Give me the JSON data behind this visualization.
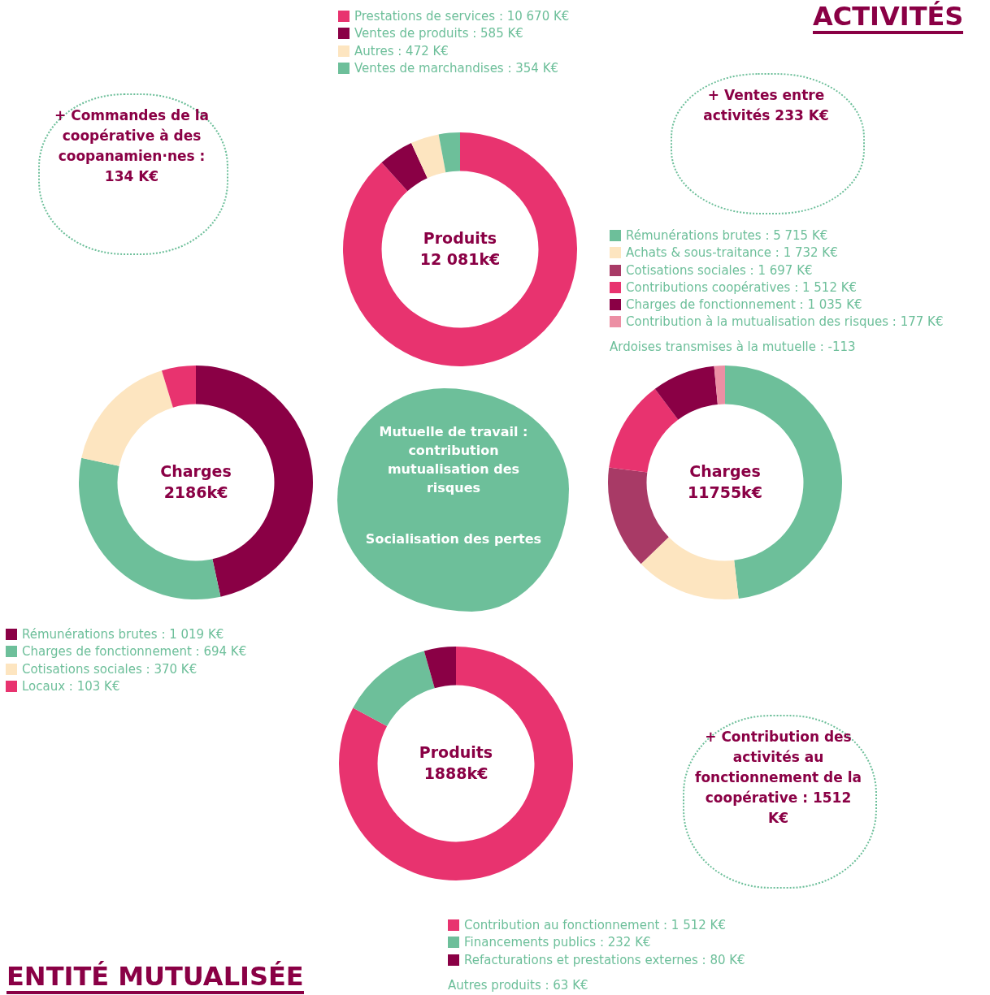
{
  "chart_data": [
    {
      "type": "donut",
      "title": "Produits",
      "subtitle": "12 081k€",
      "categories": [
        "Prestations de services",
        "Ventes de produits",
        "Autres",
        "Ventes de marchandises"
      ],
      "values": [
        10670,
        585,
        472,
        354
      ],
      "colors": [
        "#e8336f",
        "#8a0045",
        "#fde5c0",
        "#6dbf9a"
      ],
      "value_labels": [
        "10 670 K€",
        "585 K€",
        "472 K€",
        "354 K€"
      ],
      "legend": "top"
    },
    {
      "type": "donut",
      "title": "Charges",
      "subtitle": "11755k€",
      "categories": [
        "Rémunérations brutes",
        "Achats & sous-traitance",
        "Cotisations sociales",
        "Contributions coopératives",
        "Charges de fonctionnement",
        "Contribution à la mutualisation des risques"
      ],
      "values": [
        5715,
        1732,
        1697,
        1512,
        1035,
        177
      ],
      "colors": [
        "#6dbf9a",
        "#fde5c0",
        "#a83a66",
        "#e8336f",
        "#8a0045",
        "#ec8fa4"
      ],
      "value_labels": [
        "5 715 K€",
        "1 732 K€",
        "1 697 K€",
        "1 512 K€",
        "1 035 K€",
        "177 K€"
      ],
      "legend": "top right",
      "annotations": [
        "Ardoises transmises à la mutuelle : -113"
      ]
    },
    {
      "type": "donut",
      "title": "Charges",
      "subtitle": "2186k€",
      "categories": [
        "Rémunérations brutes",
        "Charges de fonctionnement",
        "Cotisations sociales",
        "Locaux"
      ],
      "values": [
        1019,
        694,
        370,
        103
      ],
      "colors": [
        "#8a0045",
        "#6dbf9a",
        "#fde5c0",
        "#e8336f"
      ],
      "value_labels": [
        "1 019 K€",
        "694 K€",
        "370 K€",
        "103 K€"
      ],
      "legend": "bottom left"
    },
    {
      "type": "donut",
      "title": "Produits",
      "subtitle": "1888k€",
      "categories": [
        "Contribution au fonctionnement",
        "Financements publics",
        "Refacturations et prestations externes"
      ],
      "values": [
        1512,
        232,
        80
      ],
      "colors": [
        "#e8336f",
        "#6dbf9a",
        "#8a0045"
      ],
      "value_labels": [
        "1 512 K€",
        "232 K€",
        "80 K€"
      ],
      "legend": "bottom right",
      "annotations": [
        "Autres produits : 63 K€"
      ]
    },
    {
      "type": "other",
      "annotations": [
        "ACTIVITÉS",
        "ENTITÉ MUTUALISÉE",
        "+ Commandes de la coopérative à des coopanamien·nes : 134 K€",
        "+ Ventes entre activités 233 K€",
        "+ Contribution des activités au fonctionnement de la coopérative : 1512 K€",
        "Mutuelle de travail : contribution mutualisation des risques",
        "Socialisation des pertes"
      ]
    }
  ]
}
